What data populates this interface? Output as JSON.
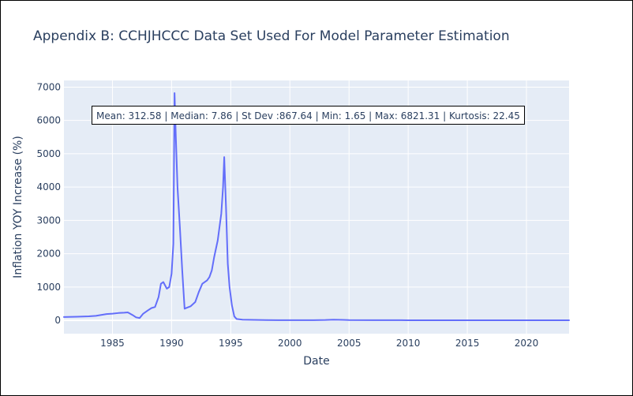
{
  "title": "Appendix B: CCHJHCCC Data Set Used For Model Parameter Estimation",
  "annotation": "Mean: 312.58 | Median: 7.86 | St Dev :867.64 | Min: 1.65 | Max: 6821.31 | Kurtosis: 22.45",
  "colors": {
    "line": "#636efa",
    "plot_bg": "#e5ecf6",
    "grid": "#ffffff",
    "text": "#2a3f5f"
  },
  "chart_data": {
    "type": "line",
    "xlabel": "Date",
    "ylabel": "Inflation YOY Increase (%)",
    "xlim": [
      1980.9,
      2023.6
    ],
    "ylim": [
      -400,
      7200
    ],
    "xticks": [
      1985,
      1990,
      1995,
      2000,
      2005,
      2010,
      2015,
      2020
    ],
    "xtick_labels": [
      "1985",
      "1990",
      "1995",
      "2000",
      "2005",
      "2010",
      "2015",
      "2020"
    ],
    "yticks": [
      0,
      1000,
      2000,
      3000,
      4000,
      5000,
      6000,
      7000
    ],
    "ytick_labels": [
      "0",
      "1000",
      "2000",
      "3000",
      "4000",
      "5000",
      "6000",
      "7000"
    ],
    "grid": true,
    "legend": "none",
    "series": [
      {
        "x": [
          1980.9,
          1982.0,
          1983.0,
          1983.6,
          1984.0,
          1984.5,
          1985.0,
          1985.5,
          1986.0,
          1986.3,
          1986.7,
          1987.0,
          1987.3,
          1987.6,
          1988.0,
          1988.3,
          1988.6,
          1988.9,
          1989.1,
          1989.3,
          1989.6,
          1989.8,
          1990.0,
          1990.15,
          1990.25,
          1990.35,
          1990.5,
          1990.7,
          1990.9,
          1991.1,
          1991.3,
          1991.6,
          1992.0,
          1992.3,
          1992.6,
          1992.8,
          1993.0,
          1993.2,
          1993.4,
          1993.6,
          1993.9,
          1994.2,
          1994.35,
          1994.45,
          1994.6,
          1994.75,
          1994.9,
          1995.1,
          1995.3,
          1995.5,
          1996.0,
          1997.0,
          1998.0,
          1999.0,
          2000.0,
          2001.0,
          2002.0,
          2003.0,
          2003.7,
          2004.5,
          2005.0,
          2007.0,
          2010.0,
          2013.0,
          2016.0,
          2020.0,
          2023.6
        ],
        "y": [
          100,
          110,
          120,
          135,
          160,
          190,
          200,
          220,
          230,
          240,
          160,
          90,
          70,
          200,
          300,
          370,
          400,
          700,
          1100,
          1150,
          950,
          1000,
          1400,
          2300,
          6821.31,
          5600,
          4000,
          2800,
          1500,
          350,
          380,
          420,
          550,
          850,
          1100,
          1150,
          1200,
          1300,
          1500,
          1900,
          2400,
          3200,
          4000,
          4900,
          3400,
          1700,
          1000,
          450,
          120,
          40,
          20,
          15,
          8,
          5,
          5,
          5,
          6,
          10,
          20,
          15,
          8,
          5,
          4,
          4,
          3,
          3,
          2
        ]
      }
    ]
  }
}
